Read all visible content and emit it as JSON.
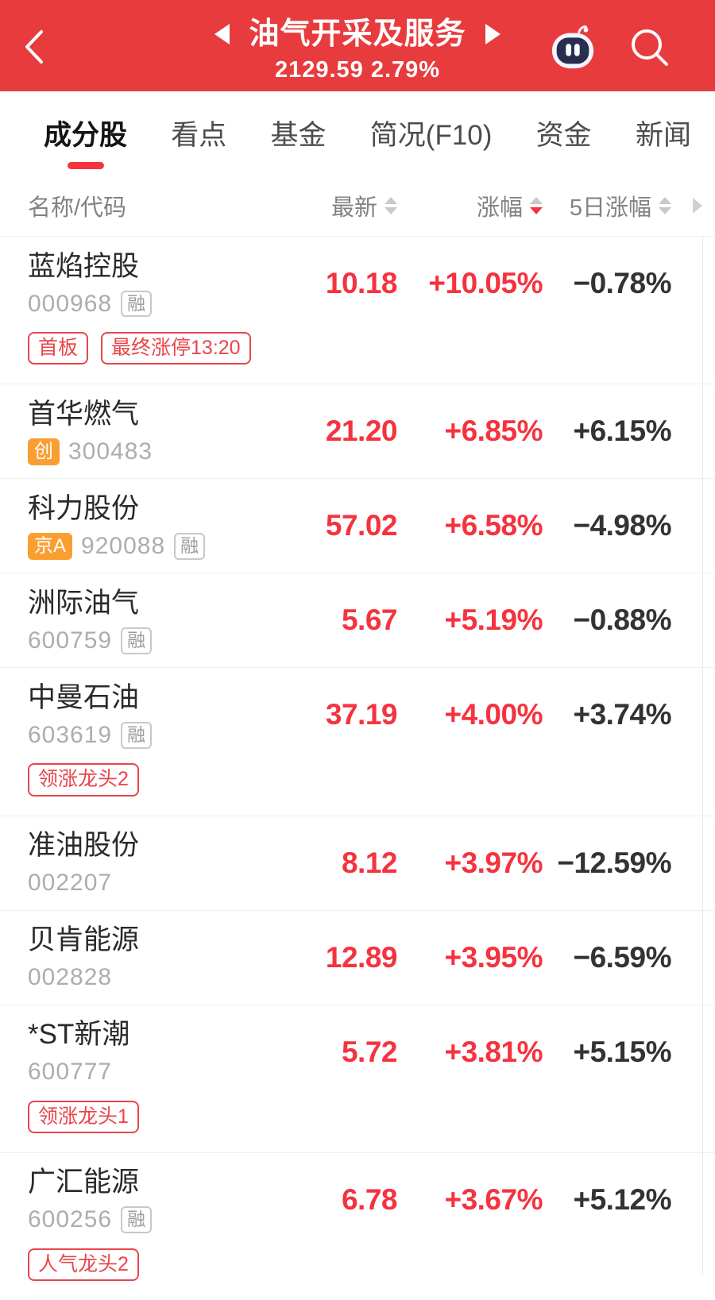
{
  "header": {
    "title": "油气开采及服务",
    "subtitle": "2129.59 2.79%",
    "icons": {
      "back": "chevron-left",
      "prev_sector": "triangle-left",
      "next_sector": "triangle-right",
      "assistant": "robot",
      "search": "magnifier"
    }
  },
  "colors": {
    "header_bg": "#e83b3d",
    "accent_red": "#f5333f",
    "tag_red": "#e9454b",
    "badge_orange": "#fb9e32",
    "neutral_value": "#333333",
    "code_gray": "#adadad"
  },
  "tabs": [
    {
      "label": "成分股",
      "active": true
    },
    {
      "label": "看点",
      "active": false
    },
    {
      "label": "基金",
      "active": false
    },
    {
      "label": "简况(F10)",
      "active": false
    },
    {
      "label": "资金",
      "active": false
    },
    {
      "label": "新闻",
      "active": false
    }
  ],
  "table": {
    "columns": [
      {
        "label": "名称/代码",
        "sortable": false,
        "sort": "none"
      },
      {
        "label": "最新",
        "sortable": true,
        "sort": "none"
      },
      {
        "label": "涨幅",
        "sortable": true,
        "sort": "desc"
      },
      {
        "label": "5日涨幅",
        "sortable": true,
        "sort": "none"
      }
    ],
    "rows": [
      {
        "name": "蓝焰控股",
        "code": "000968",
        "market_badge": null,
        "rong_badge": "融",
        "tags": [
          "首板",
          "最终涨停13:20"
        ],
        "price": "10.18",
        "change": "+10.05%",
        "change5d": "−0.78%"
      },
      {
        "name": "首华燃气",
        "code": "300483",
        "market_badge": "创",
        "rong_badge": null,
        "tags": [],
        "price": "21.20",
        "change": "+6.85%",
        "change5d": "+6.15%"
      },
      {
        "name": "科力股份",
        "code": "920088",
        "market_badge": "京A",
        "rong_badge": "融",
        "tags": [],
        "price": "57.02",
        "change": "+6.58%",
        "change5d": "−4.98%"
      },
      {
        "name": "洲际油气",
        "code": "600759",
        "market_badge": null,
        "rong_badge": "融",
        "tags": [],
        "price": "5.67",
        "change": "+5.19%",
        "change5d": "−0.88%"
      },
      {
        "name": "中曼石油",
        "code": "603619",
        "market_badge": null,
        "rong_badge": "融",
        "tags": [
          "领涨龙头2"
        ],
        "price": "37.19",
        "change": "+4.00%",
        "change5d": "+3.74%"
      },
      {
        "name": "准油股份",
        "code": "002207",
        "market_badge": null,
        "rong_badge": null,
        "tags": [],
        "price": "8.12",
        "change": "+3.97%",
        "change5d": "−12.59%"
      },
      {
        "name": "贝肯能源",
        "code": "002828",
        "market_badge": null,
        "rong_badge": null,
        "tags": [],
        "price": "12.89",
        "change": "+3.95%",
        "change5d": "−6.59%"
      },
      {
        "name": "*ST新潮",
        "code": "600777",
        "market_badge": null,
        "rong_badge": null,
        "tags": [
          "领涨龙头1"
        ],
        "price": "5.72",
        "change": "+3.81%",
        "change5d": "+5.15%"
      },
      {
        "name": "广汇能源",
        "code": "600256",
        "market_badge": null,
        "rong_badge": "融",
        "tags": [
          "人气龙头2"
        ],
        "price": "6.78",
        "change": "+3.67%",
        "change5d": "+5.12%"
      }
    ]
  }
}
